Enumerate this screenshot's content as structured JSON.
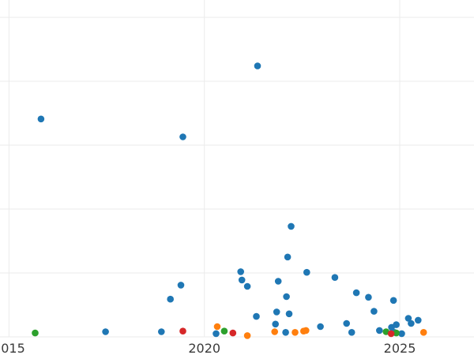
{
  "chart_data": {
    "type": "scatter",
    "title": "",
    "xlabel": "",
    "ylabel": "",
    "xlim": [
      2014.77,
      2026.9
    ],
    "ylim": [
      0,
      500
    ],
    "x_ticks": [
      2015,
      2020,
      2025
    ],
    "x_tick_labels": [
      "2015",
      "2020",
      "2025"
    ],
    "y_gridlines": [
      0,
      100,
      200,
      300,
      400,
      500
    ],
    "grid": true,
    "legend": "none",
    "colors": {
      "blue": "#1f77b4",
      "orange": "#ff7f0e",
      "green": "#2ca02c",
      "red": "#d62728"
    },
    "series": [
      {
        "color": "#1f77b4",
        "points": [
          [
            2015.82,
            341
          ],
          [
            2017.47,
            8
          ],
          [
            2018.9,
            8
          ],
          [
            2019.13,
            59
          ],
          [
            2019.4,
            81
          ],
          [
            2019.45,
            313
          ],
          [
            2020.3,
            5
          ],
          [
            2020.93,
            102
          ],
          [
            2020.96,
            89
          ],
          [
            2021.1,
            79
          ],
          [
            2021.33,
            32
          ],
          [
            2021.36,
            424
          ],
          [
            2021.82,
            20
          ],
          [
            2021.85,
            39
          ],
          [
            2021.89,
            87
          ],
          [
            2022.08,
            7
          ],
          [
            2022.1,
            63
          ],
          [
            2022.13,
            125
          ],
          [
            2022.17,
            36
          ],
          [
            2022.22,
            173
          ],
          [
            2022.62,
            101
          ],
          [
            2022.97,
            16
          ],
          [
            2023.34,
            93
          ],
          [
            2023.64,
            21
          ],
          [
            2023.77,
            7
          ],
          [
            2023.89,
            69
          ],
          [
            2024.2,
            62
          ],
          [
            2024.34,
            40
          ],
          [
            2024.48,
            10
          ],
          [
            2024.79,
            15
          ],
          [
            2024.84,
            57
          ],
          [
            2024.86,
            7
          ],
          [
            2024.91,
            19
          ],
          [
            2025.05,
            5
          ],
          [
            2025.22,
            29
          ],
          [
            2025.29,
            21
          ],
          [
            2025.47,
            26
          ]
        ]
      },
      {
        "color": "#ff7f0e",
        "points": [
          [
            2020.33,
            16
          ],
          [
            2021.1,
            2
          ],
          [
            2021.8,
            8
          ],
          [
            2022.32,
            7
          ],
          [
            2022.54,
            9
          ],
          [
            2022.6,
            10
          ],
          [
            2025.61,
            7
          ]
        ]
      },
      {
        "color": "#2ca02c",
        "points": [
          [
            2015.67,
            6
          ],
          [
            2020.51,
            9
          ],
          [
            2024.65,
            8
          ],
          [
            2024.91,
            6
          ]
        ]
      },
      {
        "color": "#d62728",
        "points": [
          [
            2019.45,
            9
          ],
          [
            2020.73,
            6
          ],
          [
            2024.78,
            5
          ]
        ]
      }
    ]
  }
}
